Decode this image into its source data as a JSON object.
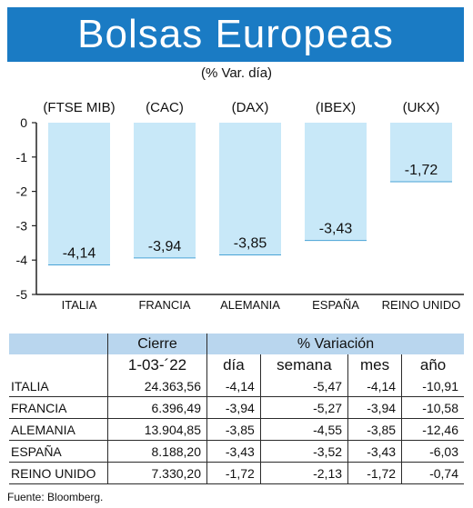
{
  "title": "Bolsas Europeas",
  "subtitle": "(% Var. día)",
  "chart_data": {
    "type": "bar",
    "categories": [
      "ITALIA",
      "FRANCIA",
      "ALEMANIA",
      "ESPAÑA",
      "REINO UNIDO"
    ],
    "index_labels": [
      "(FTSE MIB)",
      "(CAC)",
      "(DAX)",
      "(IBEX)",
      "(UKX)"
    ],
    "values": [
      -4.14,
      -3.94,
      -3.85,
      -3.43,
      -1.72
    ],
    "value_labels": [
      "-4,14",
      "-3,94",
      "-3,85",
      "-3,43",
      "-1,72"
    ],
    "ylim": [
      -5,
      0
    ],
    "yticks": [
      0,
      -1,
      -2,
      -3,
      -4,
      -5
    ],
    "ytick_labels": [
      "0",
      "-1",
      "-2",
      "-3",
      "-4",
      "-5"
    ],
    "bar_color": "#c8e8f8",
    "grid": false
  },
  "table": {
    "header_cierre": "Cierre",
    "header_variacion": "% Variación",
    "sub_date": "1-03-´22",
    "sub_cols": [
      "día",
      "semana",
      "mes",
      "año"
    ],
    "rows": [
      {
        "name": "ITALIA",
        "cierre": "24.363,56",
        "dia": "-4,14",
        "semana": "-5,47",
        "mes": "-4,14",
        "ano": "-10,91"
      },
      {
        "name": "FRANCIA",
        "cierre": "6.396,49",
        "dia": "-3,94",
        "semana": "-5,27",
        "mes": "-3,94",
        "ano": "-10,58"
      },
      {
        "name": "ALEMANIA",
        "cierre": "13.904,85",
        "dia": "-3,85",
        "semana": "-4,55",
        "mes": "-3,85",
        "ano": "-12,46"
      },
      {
        "name": "ESPAÑA",
        "cierre": "8.188,20",
        "dia": "-3,43",
        "semana": "-3,52",
        "mes": "-3,43",
        "ano": "-6,03"
      },
      {
        "name": "REINO UNIDO",
        "cierre": "7.330,20",
        "dia": "-1,72",
        "semana": "-2,13",
        "mes": "-1,72",
        "ano": "-0,74"
      }
    ]
  },
  "source": "Fuente: Bloomberg.",
  "colors": {
    "title_band": "#1a7bc4",
    "header_bg": "#b9d6ee"
  }
}
